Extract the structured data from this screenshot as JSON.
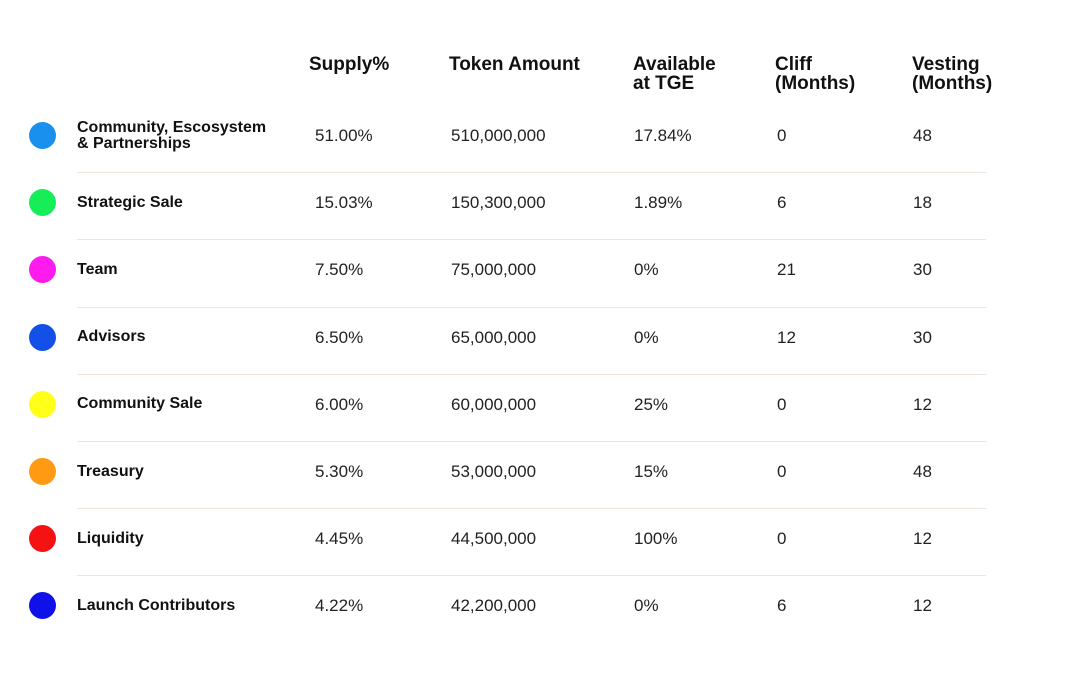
{
  "chart_data": {
    "type": "table",
    "columns": [
      "",
      "Supply%",
      "Token Amount",
      "Available\nat TGE",
      "Cliff\n(Months)",
      "Vesting\n(Months)"
    ],
    "rows": [
      {
        "label": "Community, Escosystem\n& Partnerships",
        "color": "#1a90ee",
        "supply": "51.00%",
        "amount": "510,000,000",
        "tge": "17.84%",
        "cliff": "0",
        "vesting": "48"
      },
      {
        "label": "Strategic Sale",
        "color": "#16ee58",
        "supply": "15.03%",
        "amount": "150,300,000",
        "tge": "1.89%",
        "cliff": "6",
        "vesting": "18"
      },
      {
        "label": "Team",
        "color": "#ff1aee",
        "supply": "7.50%",
        "amount": "75,000,000",
        "tge": "0%",
        "cliff": "21",
        "vesting": "30"
      },
      {
        "label": "Advisors",
        "color": "#1250e8",
        "supply": "6.50%",
        "amount": "65,000,000",
        "tge": "0%",
        "cliff": "12",
        "vesting": "30"
      },
      {
        "label": "Community Sale",
        "color": "#ffff1a",
        "supply": "6.00%",
        "amount": "60,000,000",
        "tge": "25%",
        "cliff": "0",
        "vesting": "12"
      },
      {
        "label": "Treasury",
        "color": "#ff9a12",
        "supply": "5.30%",
        "amount": "53,000,000",
        "tge": "15%",
        "cliff": "0",
        "vesting": "48"
      },
      {
        "label": "Liquidity",
        "color": "#f51212",
        "supply": "4.45%",
        "amount": "44,500,000",
        "tge": "100%",
        "cliff": "0",
        "vesting": "12"
      },
      {
        "label": "Launch Contributors",
        "color": "#1010e8",
        "supply": "4.22%",
        "amount": "42,200,000",
        "tge": "0%",
        "cliff": "6",
        "vesting": "12"
      }
    ]
  }
}
